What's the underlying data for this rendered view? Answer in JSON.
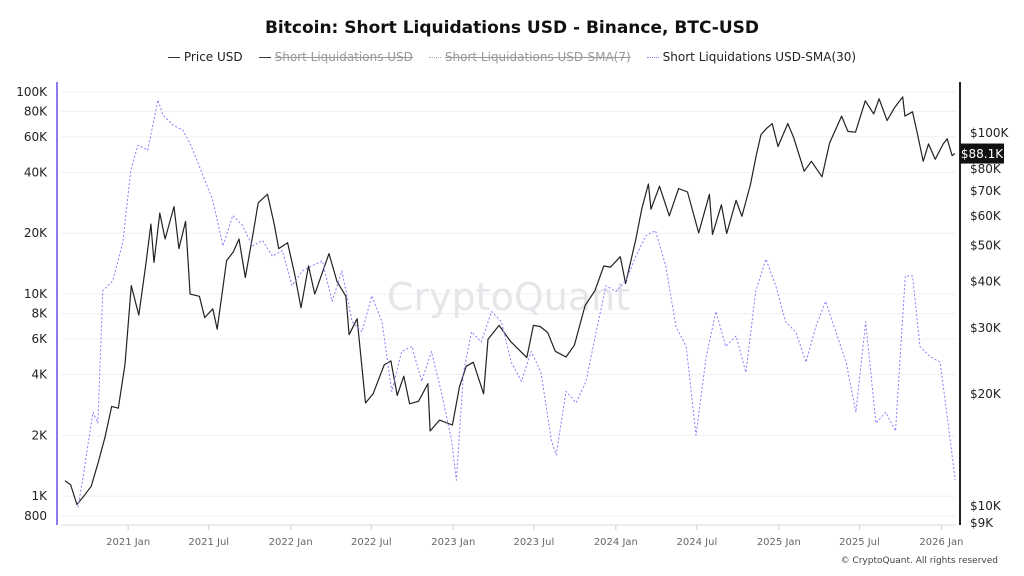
{
  "chart_data": {
    "type": "line",
    "title": "Bitcoin: Short Liquidations USD - Binance, BTC-USD",
    "legend": [
      {
        "name": "Price USD",
        "color": "#222222",
        "active": true
      },
      {
        "name": "Short Liquidations USD",
        "color": "#333333",
        "active": false
      },
      {
        "name": "Short Liquidations USD-SMA(7)",
        "color": "#aaaaaa",
        "active": false
      },
      {
        "name": "Short Liquidations USD-SMA(30)",
        "color": "#8b7cf8",
        "active": true
      }
    ],
    "legend_placement": "top-center",
    "x_ticks": [
      "2021 Jan",
      "2021 Jul",
      "2022 Jan",
      "2022 Jul",
      "2023 Jan",
      "2023 Jul",
      "2024 Jan",
      "2024 Jul",
      "2025 Jan",
      "2025 Jul",
      "2026 Jan"
    ],
    "x_tick_dates": [
      "2021-01-01",
      "2021-07-01",
      "2022-01-01",
      "2022-07-01",
      "2023-01-01",
      "2023-07-01",
      "2024-01-01",
      "2024-07-01",
      "2025-01-01",
      "2025-07-01",
      "2026-01-01"
    ],
    "xlim": [
      "2020-08-01",
      "2026-02-05"
    ],
    "left_axis": {
      "scale": "log",
      "ylim": [
        720,
        112000
      ],
      "color": "#8b7cf8",
      "ticks": [
        800,
        1000,
        2000,
        4000,
        6000,
        8000,
        10000,
        20000,
        40000,
        60000,
        80000,
        100000
      ],
      "tick_labels": [
        "800",
        "1K",
        "2K",
        "4K",
        "6K",
        "8K",
        "10K",
        "20K",
        "40K",
        "60K",
        "80K",
        "100K"
      ]
    },
    "right_axis": {
      "scale": "log",
      "ylim": [
        8900,
        137000
      ],
      "color": "#222222",
      "ticks": [
        9000,
        10000,
        20000,
        30000,
        40000,
        50000,
        60000,
        70000,
        80000,
        100000
      ],
      "tick_labels": [
        "$9K",
        "$10K",
        "$20K",
        "$30K",
        "$40K",
        "$50K",
        "$60K",
        "$70K",
        "$80K",
        "$100K"
      ]
    },
    "last_price_label": "$88.1K",
    "grid": true,
    "series": [
      {
        "name": "Price USD",
        "axis": "right",
        "color": "#222222",
        "points": [
          [
            "2020-08-12",
            11700
          ],
          [
            "2020-08-25",
            11400
          ],
          [
            "2020-09-08",
            10100
          ],
          [
            "2020-09-25",
            10700
          ],
          [
            "2020-10-10",
            11300
          ],
          [
            "2020-10-25",
            13000
          ],
          [
            "2020-11-10",
            15300
          ],
          [
            "2020-11-25",
            18500
          ],
          [
            "2020-12-10",
            18300
          ],
          [
            "2020-12-25",
            24000
          ],
          [
            "2021-01-08",
            39000
          ],
          [
            "2021-01-25",
            32500
          ],
          [
            "2021-02-10",
            44800
          ],
          [
            "2021-02-21",
            57000
          ],
          [
            "2021-02-28",
            45000
          ],
          [
            "2021-03-13",
            61000
          ],
          [
            "2021-03-25",
            52000
          ],
          [
            "2021-04-14",
            63500
          ],
          [
            "2021-04-25",
            49000
          ],
          [
            "2021-05-10",
            58000
          ],
          [
            "2021-05-20",
            37000
          ],
          [
            "2021-06-10",
            36500
          ],
          [
            "2021-06-22",
            32000
          ],
          [
            "2021-07-10",
            33800
          ],
          [
            "2021-07-20",
            29800
          ],
          [
            "2021-08-10",
            45500
          ],
          [
            "2021-08-25",
            48000
          ],
          [
            "2021-09-07",
            52000
          ],
          [
            "2021-09-21",
            41000
          ],
          [
            "2021-10-10",
            55000
          ],
          [
            "2021-10-20",
            65000
          ],
          [
            "2021-11-10",
            68500
          ],
          [
            "2021-11-25",
            57000
          ],
          [
            "2021-12-05",
            49000
          ],
          [
            "2021-12-25",
            50800
          ],
          [
            "2022-01-10",
            41800
          ],
          [
            "2022-01-24",
            34000
          ],
          [
            "2022-02-10",
            44000
          ],
          [
            "2022-02-24",
            37000
          ],
          [
            "2022-03-28",
            47500
          ],
          [
            "2022-04-15",
            40000
          ],
          [
            "2022-05-05",
            36500
          ],
          [
            "2022-05-12",
            28800
          ],
          [
            "2022-05-30",
            31800
          ],
          [
            "2022-06-18",
            18900
          ],
          [
            "2022-07-05",
            20000
          ],
          [
            "2022-07-30",
            23900
          ],
          [
            "2022-08-14",
            24500
          ],
          [
            "2022-08-28",
            19800
          ],
          [
            "2022-09-12",
            22300
          ],
          [
            "2022-09-25",
            18800
          ],
          [
            "2022-10-15",
            19100
          ],
          [
            "2022-11-05",
            21300
          ],
          [
            "2022-11-10",
            15900
          ],
          [
            "2022-12-01",
            17000
          ],
          [
            "2022-12-30",
            16500
          ],
          [
            "2023-01-15",
            20900
          ],
          [
            "2023-01-30",
            23700
          ],
          [
            "2023-02-15",
            24300
          ],
          [
            "2023-03-10",
            20000
          ],
          [
            "2023-03-20",
            28000
          ],
          [
            "2023-04-14",
            30500
          ],
          [
            "2023-05-10",
            27600
          ],
          [
            "2023-06-15",
            25000
          ],
          [
            "2023-06-30",
            30500
          ],
          [
            "2023-07-15",
            30300
          ],
          [
            "2023-08-01",
            29200
          ],
          [
            "2023-08-18",
            26000
          ],
          [
            "2023-09-11",
            25100
          ],
          [
            "2023-09-30",
            27000
          ],
          [
            "2023-10-24",
            34500
          ],
          [
            "2023-11-15",
            37800
          ],
          [
            "2023-12-05",
            44000
          ],
          [
            "2023-12-20",
            43700
          ],
          [
            "2024-01-11",
            46600
          ],
          [
            "2024-01-23",
            39500
          ],
          [
            "2024-02-15",
            52000
          ],
          [
            "2024-02-28",
            62500
          ],
          [
            "2024-03-14",
            73000
          ],
          [
            "2024-03-20",
            62500
          ],
          [
            "2024-04-08",
            72000
          ],
          [
            "2024-04-30",
            60000
          ],
          [
            "2024-05-21",
            71000
          ],
          [
            "2024-06-10",
            69500
          ],
          [
            "2024-07-05",
            54000
          ],
          [
            "2024-07-29",
            68500
          ],
          [
            "2024-08-05",
            53500
          ],
          [
            "2024-08-25",
            64200
          ],
          [
            "2024-09-06",
            53800
          ],
          [
            "2024-09-27",
            66000
          ],
          [
            "2024-10-10",
            59800
          ],
          [
            "2024-10-29",
            72500
          ],
          [
            "2024-11-12",
            88000
          ],
          [
            "2024-11-22",
            99000
          ],
          [
            "2024-12-05",
            103000
          ],
          [
            "2024-12-17",
            106000
          ],
          [
            "2024-12-30",
            92000
          ],
          [
            "2025-01-21",
            106000
          ],
          [
            "2025-02-03",
            97500
          ],
          [
            "2025-02-27",
            79000
          ],
          [
            "2025-03-15",
            84000
          ],
          [
            "2025-04-08",
            76300
          ],
          [
            "2025-04-25",
            94000
          ],
          [
            "2025-05-22",
            111000
          ],
          [
            "2025-06-05",
            101000
          ],
          [
            "2025-06-22",
            100500
          ],
          [
            "2025-07-14",
            122000
          ],
          [
            "2025-08-02",
            112500
          ],
          [
            "2025-08-14",
            123500
          ],
          [
            "2025-09-01",
            108000
          ],
          [
            "2025-09-18",
            117000
          ],
          [
            "2025-10-06",
            125000
          ],
          [
            "2025-10-11",
            111000
          ],
          [
            "2025-10-28",
            114000
          ],
          [
            "2025-11-07",
            101000
          ],
          [
            "2025-11-21",
            84000
          ],
          [
            "2025-12-03",
            93500
          ],
          [
            "2025-12-18",
            85000
          ],
          [
            "2026-01-05",
            93500
          ],
          [
            "2026-01-14",
            96500
          ],
          [
            "2026-01-25",
            87000
          ],
          [
            "2026-01-31",
            88100
          ]
        ]
      },
      {
        "name": "Short Liquidations USD-SMA(30)",
        "axis": "left",
        "color": "#8b7cf8",
        "points": [
          [
            "2020-09-10",
            880
          ],
          [
            "2020-09-20",
            1170
          ],
          [
            "2020-10-01",
            1700
          ],
          [
            "2020-10-14",
            2600
          ],
          [
            "2020-10-25",
            2300
          ],
          [
            "2020-11-05",
            10400
          ],
          [
            "2020-11-27",
            11600
          ],
          [
            "2020-12-20",
            18000
          ],
          [
            "2021-01-07",
            40900
          ],
          [
            "2021-01-23",
            54500
          ],
          [
            "2021-02-14",
            51500
          ],
          [
            "2021-03-09",
            91200
          ],
          [
            "2021-03-20",
            76800
          ],
          [
            "2021-04-12",
            68500
          ],
          [
            "2021-05-04",
            64700
          ],
          [
            "2021-05-22",
            54500
          ],
          [
            "2021-06-18",
            38600
          ],
          [
            "2021-07-10",
            29100
          ],
          [
            "2021-08-02",
            17300
          ],
          [
            "2021-08-24",
            24500
          ],
          [
            "2021-09-15",
            21800
          ],
          [
            "2021-10-07",
            17300
          ],
          [
            "2021-10-30",
            18400
          ],
          [
            "2021-11-21",
            15400
          ],
          [
            "2021-12-13",
            16400
          ],
          [
            "2022-01-04",
            11000
          ],
          [
            "2022-01-27",
            13000
          ],
          [
            "2022-02-18",
            13800
          ],
          [
            "2022-03-13",
            14600
          ],
          [
            "2022-04-04",
            9200
          ],
          [
            "2022-04-26",
            13000
          ],
          [
            "2022-05-19",
            7300
          ],
          [
            "2022-06-10",
            6500
          ],
          [
            "2022-07-02",
            9800
          ],
          [
            "2022-07-25",
            7300
          ],
          [
            "2022-08-16",
            3300
          ],
          [
            "2022-09-07",
            5200
          ],
          [
            "2022-09-30",
            5500
          ],
          [
            "2022-10-22",
            3700
          ],
          [
            "2022-11-13",
            5200
          ],
          [
            "2022-12-05",
            3300
          ],
          [
            "2022-12-28",
            1900
          ],
          [
            "2023-01-08",
            1200
          ],
          [
            "2023-01-24",
            4100
          ],
          [
            "2023-02-11",
            6500
          ],
          [
            "2023-03-05",
            5800
          ],
          [
            "2023-03-28",
            8200
          ],
          [
            "2023-04-19",
            7300
          ],
          [
            "2023-05-11",
            4600
          ],
          [
            "2023-06-03",
            3700
          ],
          [
            "2023-06-25",
            5200
          ],
          [
            "2023-07-17",
            4100
          ],
          [
            "2023-08-09",
            1900
          ],
          [
            "2023-08-20",
            1600
          ],
          [
            "2023-09-11",
            3300
          ],
          [
            "2023-10-04",
            2900
          ],
          [
            "2023-10-26",
            3700
          ],
          [
            "2023-11-18",
            6500
          ],
          [
            "2023-12-10",
            11000
          ],
          [
            "2024-01-01",
            10300
          ],
          [
            "2024-01-23",
            11600
          ],
          [
            "2024-02-15",
            15400
          ],
          [
            "2024-03-08",
            19400
          ],
          [
            "2024-03-30",
            20600
          ],
          [
            "2024-04-22",
            13800
          ],
          [
            "2024-05-15",
            6900
          ],
          [
            "2024-06-07",
            5500
          ],
          [
            "2024-06-29",
            2000
          ],
          [
            "2024-07-22",
            4900
          ],
          [
            "2024-08-13",
            8200
          ],
          [
            "2024-09-04",
            5500
          ],
          [
            "2024-09-27",
            6200
          ],
          [
            "2024-10-19",
            4100
          ],
          [
            "2024-11-10",
            10300
          ],
          [
            "2024-12-03",
            14900
          ],
          [
            "2024-12-25",
            11000
          ],
          [
            "2025-01-16",
            7300
          ],
          [
            "2025-02-08",
            6500
          ],
          [
            "2025-03-03",
            4600
          ],
          [
            "2025-03-25",
            6900
          ],
          [
            "2025-04-16",
            9200
          ],
          [
            "2025-05-09",
            6500
          ],
          [
            "2025-06-01",
            4600
          ],
          [
            "2025-06-23",
            2600
          ],
          [
            "2025-07-15",
            7300
          ],
          [
            "2025-08-07",
            2300
          ],
          [
            "2025-08-29",
            2600
          ],
          [
            "2025-09-20",
            2100
          ],
          [
            "2025-10-12",
            12300
          ],
          [
            "2025-10-28",
            12300
          ],
          [
            "2025-11-14",
            5500
          ],
          [
            "2025-12-07",
            4900
          ],
          [
            "2025-12-29",
            4600
          ],
          [
            "2026-01-16",
            2300
          ],
          [
            "2026-02-01",
            1200
          ]
        ]
      }
    ],
    "watermark": "CryptoQuant"
  },
  "footer": "© CryptoQuant. All rights reserved"
}
